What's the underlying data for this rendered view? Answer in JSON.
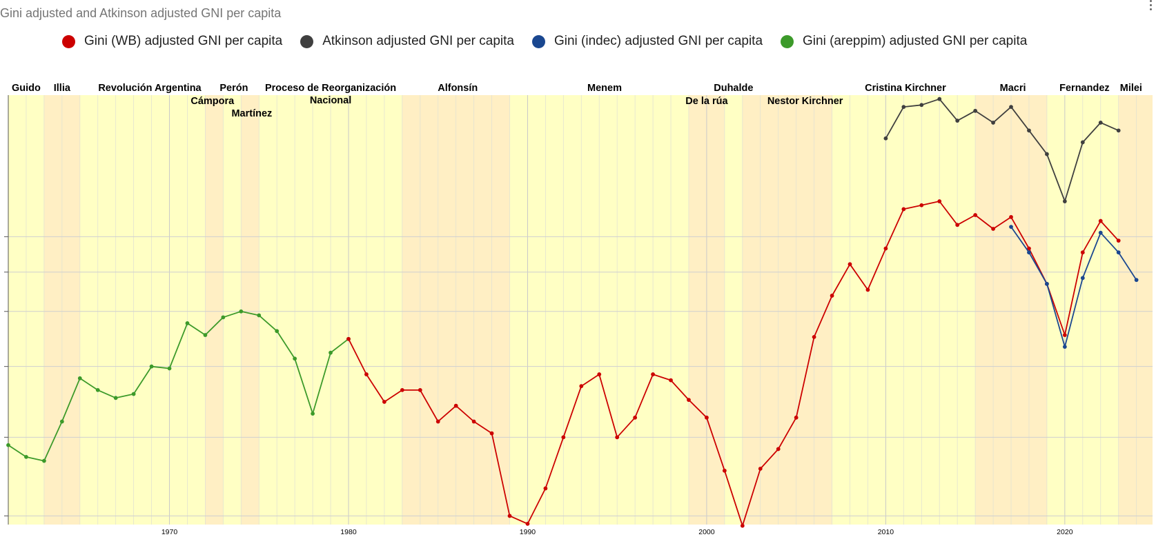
{
  "chart_data": {
    "type": "line",
    "title": "Gini adjusted and Atkinson adjusted GNI per capita",
    "xlabel": "",
    "ylabel": "",
    "xlim": [
      1961,
      2024.9
    ],
    "ylim": [
      3780,
      14700
    ],
    "x_ticks": [
      1970,
      1980,
      1990,
      2000,
      2010,
      2020
    ],
    "y_gridlines": [
      4000,
      6000,
      7800,
      9200,
      10200,
      11100
    ],
    "grid": true,
    "legend_position": "top",
    "series": [
      {
        "name": "Gini (WB) adjusted GNI per capita",
        "color": "#cc0000",
        "points": [
          [
            1980,
            8500
          ],
          [
            1981,
            7600
          ],
          [
            1982,
            6900
          ],
          [
            1983,
            7200
          ],
          [
            1984,
            7200
          ],
          [
            1985,
            6400
          ],
          [
            1986,
            6800
          ],
          [
            1987,
            6400
          ],
          [
            1988,
            6100
          ],
          [
            1989,
            4000
          ],
          [
            1990,
            3800
          ],
          [
            1991,
            4700
          ],
          [
            1992,
            6000
          ],
          [
            1993,
            7300
          ],
          [
            1994,
            7600
          ],
          [
            1995,
            6000
          ],
          [
            1996,
            6500
          ],
          [
            1997,
            7600
          ],
          [
            1998,
            7450
          ],
          [
            1999,
            6950
          ],
          [
            2000,
            6500
          ],
          [
            2001,
            5150
          ],
          [
            2002,
            3750
          ],
          [
            2003,
            5200
          ],
          [
            2004,
            5700
          ],
          [
            2005,
            6500
          ],
          [
            2006,
            8550
          ],
          [
            2007,
            9600
          ],
          [
            2008,
            10400
          ],
          [
            2009,
            9750
          ],
          [
            2010,
            10800
          ],
          [
            2011,
            11800
          ],
          [
            2012,
            11900
          ],
          [
            2013,
            12000
          ],
          [
            2014,
            11400
          ],
          [
            2015,
            11650
          ],
          [
            2016,
            11300
          ],
          [
            2017,
            11600
          ],
          [
            2018,
            10800
          ],
          [
            2019,
            9900
          ],
          [
            2020,
            8600
          ],
          [
            2021,
            10700
          ],
          [
            2022,
            11500
          ],
          [
            2023,
            11000
          ]
        ]
      },
      {
        "name": "Atkinson adjusted GNI per capita",
        "color": "#3f3f3f",
        "points": [
          [
            2010,
            13600
          ],
          [
            2011,
            14400
          ],
          [
            2012,
            14450
          ],
          [
            2013,
            14600
          ],
          [
            2014,
            14050
          ],
          [
            2015,
            14300
          ],
          [
            2016,
            14000
          ],
          [
            2017,
            14400
          ],
          [
            2018,
            13800
          ],
          [
            2019,
            13200
          ],
          [
            2020,
            12000
          ],
          [
            2021,
            13500
          ],
          [
            2022,
            14000
          ],
          [
            2023,
            13800
          ]
        ]
      },
      {
        "name": "Gini (indec) adjusted GNI per capita",
        "color": "#1a4790",
        "points": [
          [
            2017,
            11350
          ],
          [
            2018,
            10700
          ],
          [
            2019,
            9900
          ],
          [
            2020,
            8300
          ],
          [
            2021,
            10050
          ],
          [
            2022,
            11200
          ],
          [
            2023,
            10700
          ],
          [
            2024,
            10000
          ]
        ]
      },
      {
        "name": "Gini (areppim) adjusted GNI per capita",
        "color": "#3c9a2a",
        "points": [
          [
            1961,
            5800
          ],
          [
            1962,
            5500
          ],
          [
            1963,
            5400
          ],
          [
            1964,
            6400
          ],
          [
            1965,
            7500
          ],
          [
            1966,
            7200
          ],
          [
            1967,
            7000
          ],
          [
            1968,
            7100
          ],
          [
            1969,
            7800
          ],
          [
            1970,
            7750
          ],
          [
            1971,
            8900
          ],
          [
            1972,
            8600
          ],
          [
            1973,
            9050
          ],
          [
            1974,
            9200
          ],
          [
            1975,
            9100
          ],
          [
            1976,
            8700
          ],
          [
            1977,
            8000
          ],
          [
            1978,
            6600
          ],
          [
            1979,
            8150
          ],
          [
            1980,
            8500
          ]
        ]
      }
    ],
    "eras": [
      {
        "label": "Guido",
        "from": 1961,
        "to": 1963,
        "lines": [
          "Guido"
        ],
        "label_x": 1962,
        "level": 0
      },
      {
        "label": "Illia",
        "from": 1963,
        "to": 1965,
        "lines": [
          "Illia"
        ],
        "label_x": 1964,
        "level": 0
      },
      {
        "label": "Revolución Argentina",
        "from": 1965,
        "to": 1972,
        "lines": [
          "Revolución Argentina"
        ],
        "label_x": 1968.9,
        "level": 0
      },
      {
        "label": "Cámpora",
        "from": 1972,
        "to": 1973,
        "lines": [
          "Cámpora"
        ],
        "label_x": 1972.4,
        "level": 1
      },
      {
        "label": "Perón",
        "from": 1973,
        "to": 1974,
        "lines": [
          "Perón"
        ],
        "label_x": 1973.6,
        "level": 0
      },
      {
        "label": "Martínez",
        "from": 1974,
        "to": 1975,
        "lines": [
          "Martínez"
        ],
        "label_x": 1974.6,
        "level": 2
      },
      {
        "label": "Proceso de Reorganización Nacional",
        "from": 1975,
        "to": 1983,
        "lines": [
          "Proceso de Reorganización",
          "Nacional"
        ],
        "label_x": 1979,
        "level": 0
      },
      {
        "label": "Alfonsín",
        "from": 1983,
        "to": 1989,
        "lines": [
          "Alfonsín"
        ],
        "label_x": 1986.1,
        "level": 0
      },
      {
        "label": "Menem",
        "from": 1989,
        "to": 1999,
        "lines": [
          "Menem"
        ],
        "label_x": 1994.3,
        "level": 0
      },
      {
        "label": "De la rúa",
        "from": 1999,
        "to": 2001,
        "lines": [
          "De la rúa"
        ],
        "label_x": 2000,
        "level": 1
      },
      {
        "label": "Duhalde",
        "from": 2001,
        "to": 2002,
        "lines": [
          "Duhalde"
        ],
        "label_x": 2001.5,
        "level": 0
      },
      {
        "label": "Nestor Kirchner",
        "from": 2002,
        "to": 2007,
        "lines": [
          "Nestor Kirchner"
        ],
        "label_x": 2005.5,
        "level": 1
      },
      {
        "label": "Cristina Kirchner",
        "from": 2007,
        "to": 2015,
        "lines": [
          "Cristina Kirchner"
        ],
        "label_x": 2011.1,
        "level": 0
      },
      {
        "label": "Macri",
        "from": 2015,
        "to": 2019,
        "lines": [
          "Macri"
        ],
        "label_x": 2017.1,
        "level": 0
      },
      {
        "label": "Fernandez",
        "from": 2019,
        "to": 2023,
        "lines": [
          "Fernandez"
        ],
        "label_x": 2021.1,
        "level": 0
      },
      {
        "label": "Milei",
        "from": 2023,
        "to": 2024.9,
        "lines": [
          "Milei"
        ],
        "label_x": 2023.7,
        "level": 0
      }
    ],
    "era_colors": [
      "#ffffc4",
      "#ffefc4"
    ]
  },
  "legend": [
    {
      "label": "Gini (WB) adjusted GNI per capita",
      "color": "#cc0000"
    },
    {
      "label": "Atkinson adjusted GNI per capita",
      "color": "#3f3f3f"
    },
    {
      "label": "Gini (indec) adjusted GNI per capita",
      "color": "#1a4790"
    },
    {
      "label": "Gini (areppim) adjusted GNI per capita",
      "color": "#3c9a2a"
    }
  ]
}
